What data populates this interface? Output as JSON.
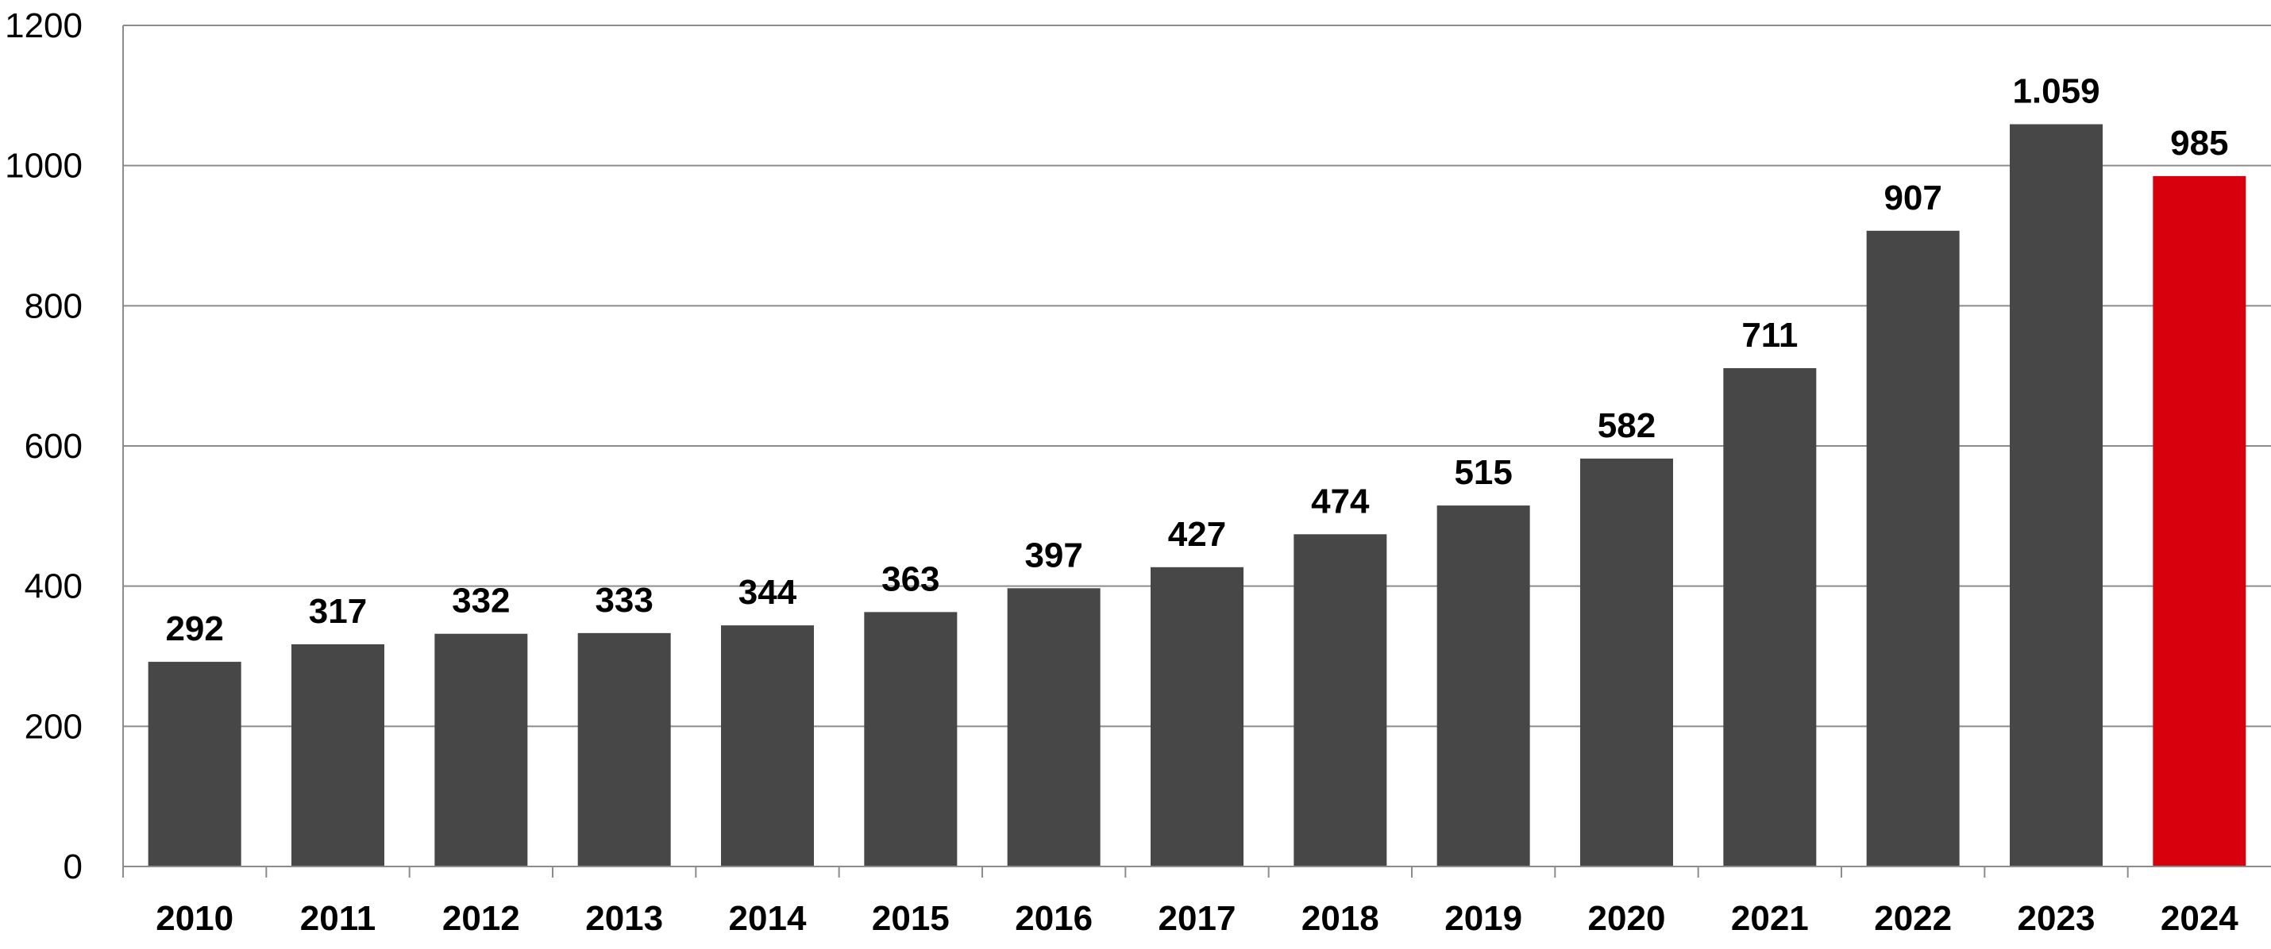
{
  "chart_data": {
    "type": "bar",
    "title": "",
    "xlabel": "",
    "ylabel": "",
    "categories": [
      "2010",
      "2011",
      "2012",
      "2013",
      "2014",
      "2015",
      "2016",
      "2017",
      "2018",
      "2019",
      "2020",
      "2021",
      "2022",
      "2023",
      "2024"
    ],
    "values": [
      292,
      317,
      332,
      333,
      344,
      363,
      397,
      427,
      474,
      515,
      582,
      711,
      907,
      1059,
      985
    ],
    "data_labels": [
      "292",
      "317",
      "332",
      "333",
      "344",
      "363",
      "397",
      "427",
      "474",
      "515",
      "582",
      "711",
      "907",
      "1.059",
      "985"
    ],
    "ylim": [
      0,
      1200
    ],
    "yticks": [
      0,
      200,
      400,
      600,
      800,
      1000,
      1200
    ],
    "grid": true,
    "bar_color": "#474747",
    "highlight_color": "#d9000d",
    "highlight_index": 14
  }
}
